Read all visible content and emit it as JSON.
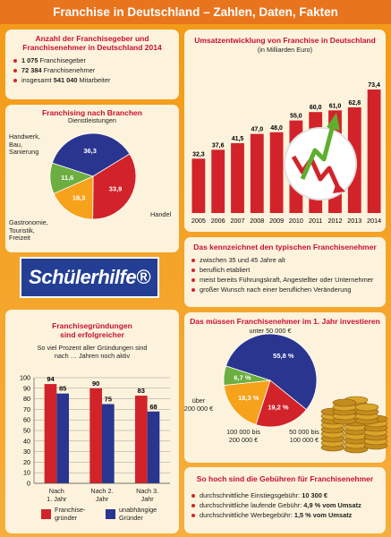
{
  "title": "Franchise in Deutschland – Zahlen, Daten, Fakten",
  "facts": {
    "title": "Anzahl der Franchisegeber und\nFranchisenehmer in Deutschland 2014",
    "items": [
      [
        {
          "text": "1 075",
          "bold": true
        },
        {
          "text": " Franchisegeber"
        }
      ],
      [
        {
          "text": "72 384",
          "bold": true
        },
        {
          "text": " Franchisenehmer"
        }
      ],
      [
        {
          "text": "insgesamt "
        },
        {
          "text": "541 040",
          "bold": true
        },
        {
          "text": " Mitarbeiter"
        }
      ]
    ]
  },
  "logo": "Schülerhilfe®",
  "profile": {
    "title": "Das kennzeichnet den typischen Franchisenehmer",
    "items": [
      "zwischen 35 und 45 Jahre alt",
      "beruflich etabliert",
      "meist bereits Führungskraft, Angestellter oder Unternehmer",
      "großer Wunsch nach einer beruflichen Veränderung"
    ]
  },
  "fees": {
    "title": "So hoch sind die Gebühren für Franchisenehmer",
    "items": [
      [
        {
          "text": "durchschnittliche Einstiegsgebühr: "
        },
        {
          "text": "10 300 €",
          "bold": true
        }
      ],
      [
        {
          "text": "durchschnittliche laufende Gebühr: "
        },
        {
          "text": "4,9 % vom Umsatz",
          "bold": true
        }
      ],
      [
        {
          "text": "durchschnittliche Werbegebühr: "
        },
        {
          "text": "1,5 % vom Umsatz",
          "bold": true
        }
      ]
    ]
  },
  "chart_data": [
    {
      "type": "pie",
      "title": "Franchising nach Branchen",
      "categories": [
        "Dienstleistungen",
        "Handel",
        "Gastronomie,\nTouristik,\nFreizeit",
        "Handwerk,\nBau,\nSanierung"
      ],
      "values": [
        36.3,
        33.9,
        18.3,
        11.6
      ],
      "value_labels": [
        "36,3",
        "33,9",
        "18,3",
        "11,6"
      ],
      "colors": [
        "#2a3590",
        "#d2232a",
        "#f7a21b",
        "#6cae3f"
      ]
    },
    {
      "type": "bar",
      "title": "Umsatzentwicklung von Franchise in Deutschland",
      "subtitle": "(in Milliarden Euro)",
      "categories": [
        "2005",
        "2006",
        "2007",
        "2008",
        "2009",
        "2010",
        "2011",
        "2012",
        "2013",
        "2014"
      ],
      "values": [
        32.3,
        37.6,
        41.5,
        47.0,
        48.0,
        55.0,
        60.0,
        61.0,
        62.8,
        73.4
      ],
      "value_labels": [
        "32,3",
        "37,6",
        "41,5",
        "47,0",
        "48,0",
        "55,0",
        "60,0",
        "61,0",
        "62,8",
        "73,4"
      ],
      "color": "#d2232a"
    },
    {
      "type": "bar",
      "title": "Franchisegründungen\nsind erfolgreicher",
      "subtitle": "So viel Prozent aller Gründungen sind\nnach … Jahren noch aktiv",
      "categories": [
        "Nach\n1. Jahr",
        "Nach 2.\nJahr",
        "Nach 3.\nJahr"
      ],
      "series": [
        {
          "name": "Franchise-\ngründer",
          "color": "#d2232a",
          "values": [
            94,
            90,
            83
          ]
        },
        {
          "name": "unabhängige\nGründer",
          "color": "#2a3590",
          "values": [
            85,
            75,
            68
          ]
        }
      ],
      "ylim": [
        0,
        100
      ],
      "yticks": [
        0,
        10,
        20,
        30,
        40,
        50,
        60,
        70,
        80,
        90,
        100
      ],
      "grid": true
    },
    {
      "type": "pie",
      "title": "Das müssen Franchisenehmer im 1. Jahr investieren",
      "categories": [
        "unter 50 000 €",
        "50 000 bis\n100 000 €",
        "100 000 bis\n200 000 €",
        "über\n200 000 €"
      ],
      "values": [
        55.8,
        19.2,
        18.3,
        6.7
      ],
      "value_labels": [
        "55,8 %",
        "19,2 %",
        "18,3 %",
        "6,7 %"
      ],
      "colors": [
        "#2a3590",
        "#d2232a",
        "#f7a21b",
        "#6cae3f"
      ]
    }
  ]
}
